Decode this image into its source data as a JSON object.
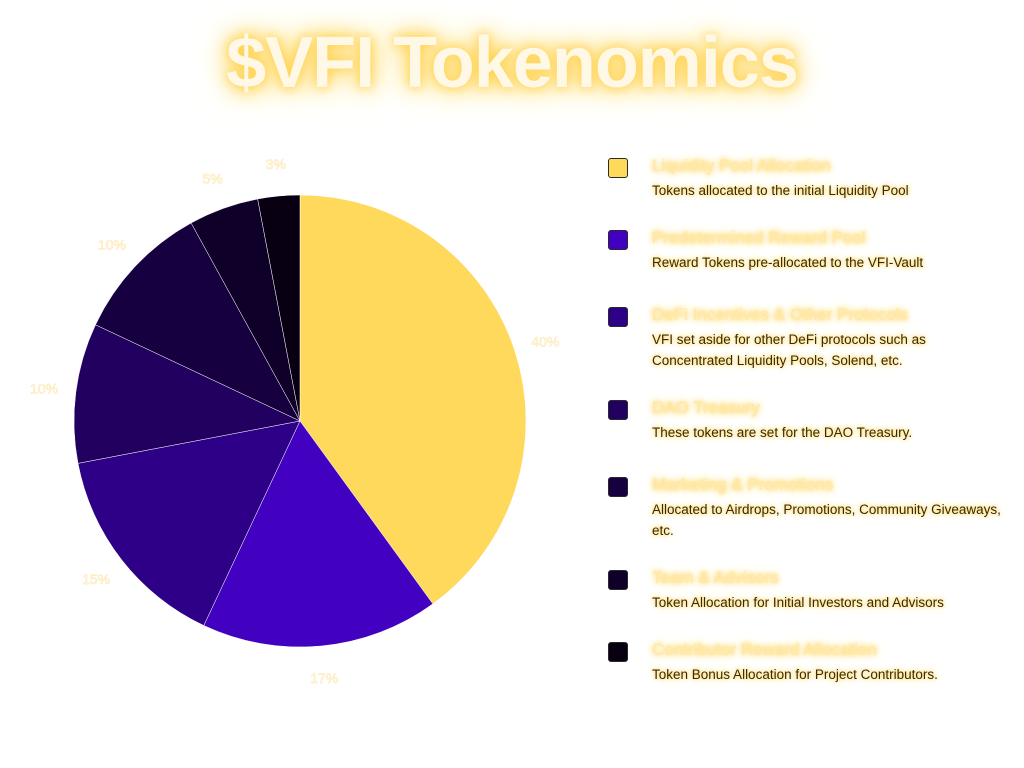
{
  "title": "$VFI Tokenomics",
  "chart_data": {
    "type": "pie",
    "slices": [
      {
        "label": "Liquidity Pool Allocation",
        "value": 40,
        "value_label": "40%",
        "color": "#ffd95c"
      },
      {
        "label": "Predetermined Reward Pool",
        "value": 17,
        "value_label": "17%",
        "color": "#4200c0"
      },
      {
        "label": "DeFi Incentives & Other Protocols",
        "value": 15,
        "value_label": "15%",
        "color": "#2e0087"
      },
      {
        "label": "DAO Treasury",
        "value": 10,
        "value_label": "10%",
        "color": "#22005f"
      },
      {
        "label": "Marketing & Promotions",
        "value": 10,
        "value_label": "10%",
        "color": "#17003f"
      },
      {
        "label": "Team & Advisors",
        "value": 5,
        "value_label": "5%",
        "color": "#0f0029"
      },
      {
        "label": "Contributor Reward Allocation",
        "value": 3,
        "value_label": "3%",
        "color": "#080012"
      }
    ],
    "start": "top",
    "direction": "clockwise"
  },
  "legend": [
    {
      "title": "Liquidity Pool Allocation",
      "desc": "Tokens allocated to the initial Liquidity Pool",
      "color": "#ffd95c"
    },
    {
      "title": "Predetermined Reward Pool",
      "desc": "Reward Tokens pre-allocated to the VFI-Vault",
      "color": "#4200c0"
    },
    {
      "title": "DeFi Incentives & Other Protocols",
      "desc": "VFI set aside for other DeFi protocols such as Concentrated Liquidity Pools, Solend, etc.",
      "color": "#2e0087"
    },
    {
      "title": "DAO Treasury",
      "desc": "These tokens are set for the DAO Treasury.",
      "color": "#22005f"
    },
    {
      "title": "Marketing & Promotions",
      "desc": "Allocated to Airdrops, Promotions, Community Giveaways, etc.",
      "color": "#17003f"
    },
    {
      "title": "Team & Advisors",
      "desc": "Token Allocation for Initial Investors and Advisors",
      "color": "#0f0029"
    },
    {
      "title": "Contributor Reward Allocation",
      "desc": "Token Bonus Allocation for Project Contributors.",
      "color": "#080012"
    }
  ]
}
